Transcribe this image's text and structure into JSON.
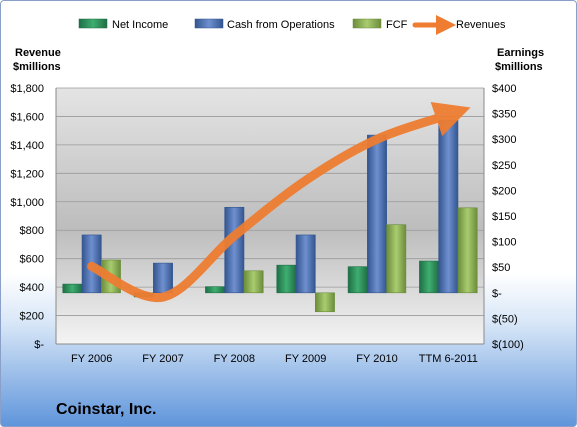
{
  "chart_data": {
    "type": "bar",
    "title": "Coinstar, Inc.",
    "categories": [
      "FY 2006",
      "FY 2007",
      "FY 2008",
      "FY 2009",
      "FY 2010",
      "TTM 6-2011"
    ],
    "left_axis": {
      "title": [
        "Revenue",
        "$millions"
      ],
      "ylim": [
        0,
        1800
      ],
      "ticks": [
        0,
        200,
        400,
        600,
        800,
        1000,
        1200,
        1400,
        1600,
        1800
      ],
      "tick_labels": [
        "$-",
        "$200",
        "$400",
        "$600",
        "$800",
        "$1,000",
        "$1,200",
        "$1,400",
        "$1,600",
        "$1,800"
      ]
    },
    "right_axis": {
      "title": [
        "Earnings",
        "$millions"
      ],
      "ylim": [
        -100,
        400
      ],
      "ticks": [
        -100,
        -50,
        0,
        50,
        100,
        150,
        200,
        250,
        300,
        350,
        400
      ],
      "tick_labels": [
        "$(100)",
        "$(50)",
        "$-",
        "$50",
        "$100",
        "$150",
        "$200",
        "$250",
        "$300",
        "$350",
        "$400"
      ]
    },
    "series": [
      {
        "name": "Net Income",
        "axis": "right",
        "type": "bar",
        "color": "#2e8b57",
        "values": [
          17,
          -8,
          12,
          54,
          51,
          62
        ]
      },
      {
        "name": "Cash from Operations",
        "axis": "right",
        "type": "bar",
        "color": "#4a6fb5",
        "values": [
          113,
          58,
          167,
          113,
          308,
          337
        ]
      },
      {
        "name": "FCF",
        "axis": "right",
        "type": "bar",
        "color": "#8db254",
        "values": [
          64,
          0,
          43,
          -37,
          133,
          166
        ]
      },
      {
        "name": "Revenues",
        "axis": "left",
        "type": "line",
        "color": "#ee7d31",
        "values": [
          546,
          330,
          760,
          1150,
          1440,
          1610
        ]
      }
    ],
    "grid": true,
    "legend_position": "top"
  }
}
